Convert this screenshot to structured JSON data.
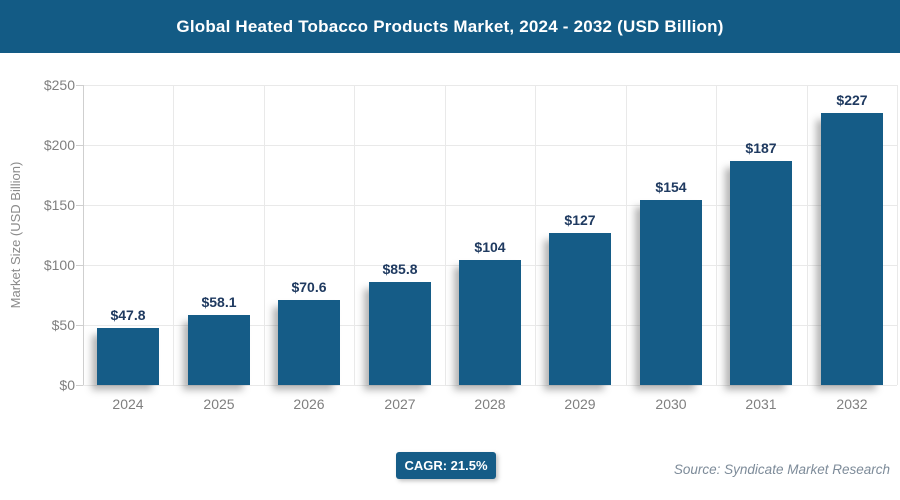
{
  "header": {
    "title": "Global Heated Tobacco Products Market, 2024 - 2032 (USD Billion)"
  },
  "chart_data": {
    "type": "bar",
    "title": "Global Heated Tobacco Products Market, 2024 - 2032 (USD Billion)",
    "categories": [
      "2024",
      "2025",
      "2026",
      "2027",
      "2028",
      "2029",
      "2030",
      "2031",
      "2032"
    ],
    "values": [
      47.8,
      58.1,
      70.6,
      85.8,
      104,
      127,
      154,
      187,
      227
    ],
    "value_labels": [
      "$47.8",
      "$58.1",
      "$70.6",
      "$85.8",
      "$104",
      "$127",
      "$154",
      "$187",
      "$227"
    ],
    "xlabel": "",
    "ylabel": "Market Size (USD Billion)",
    "ylim": [
      0,
      250
    ],
    "yticks": [
      0,
      50,
      100,
      150,
      200,
      250
    ],
    "ytick_labels": [
      "$0",
      "$50",
      "$100",
      "$150",
      "$200",
      "$250"
    ],
    "grid": true,
    "legend": "none",
    "bar_color": "#155c87"
  },
  "footer": {
    "cagr_label": "CAGR: 21.5%",
    "source": "Source: Syndicate Market Research"
  },
  "colors": {
    "header_bg": "#135b85",
    "bar_fill": "#155c87",
    "badge_bg": "#155c87",
    "value_label_color": "#1f3a60",
    "axis_text_color": "#808080",
    "gridline_color": "#e9e9e9",
    "axis_line_color": "#cfcfcf",
    "source_text_color": "#7d8b99"
  }
}
